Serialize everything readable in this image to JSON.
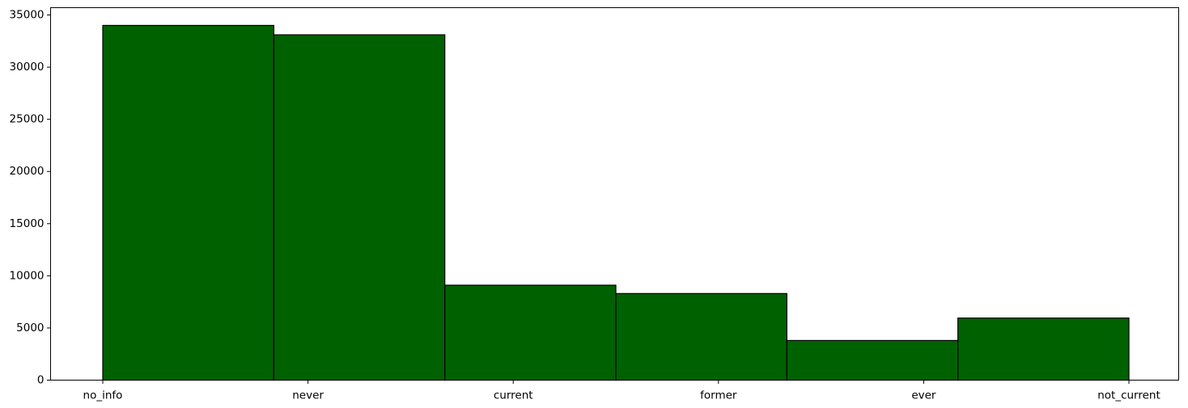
{
  "chart_data": {
    "type": "bar",
    "categories": [
      "no_info",
      "never",
      "current",
      "former",
      "ever",
      "not_current"
    ],
    "values": [
      34000,
      33100,
      9100,
      8300,
      3800,
      5950
    ],
    "title": "",
    "xlabel": "",
    "ylabel": "",
    "ylim": [
      0,
      35700
    ],
    "yticks": [
      0,
      5000,
      10000,
      15000,
      20000,
      25000,
      30000,
      35000
    ],
    "ytick_labels": [
      "0",
      "5000",
      "10000",
      "15000",
      "20000",
      "25000",
      "30000",
      "35000"
    ],
    "xticks": [
      "no_info",
      "never",
      "current",
      "former",
      "ever",
      "not_current"
    ],
    "grid": false,
    "legend": "none",
    "bar_color": "#006100",
    "edge_color": "#000000"
  }
}
